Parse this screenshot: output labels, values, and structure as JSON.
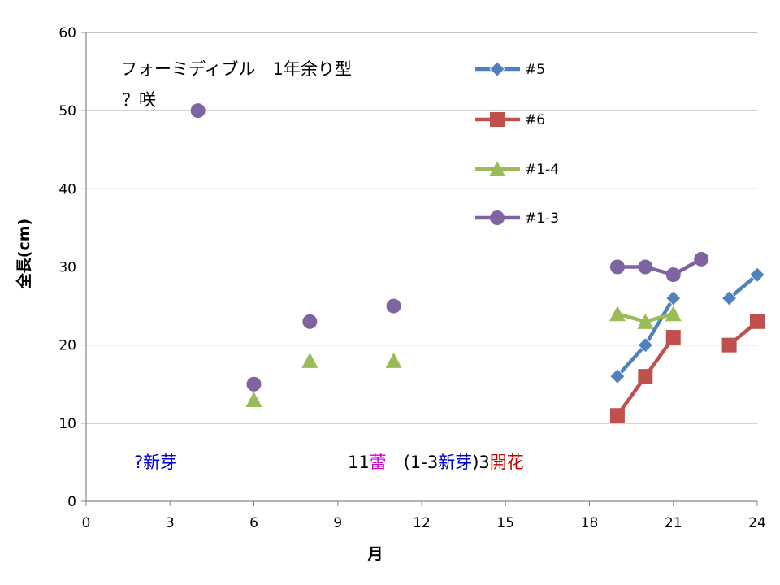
{
  "chart_data": {
    "type": "scatter",
    "title": "",
    "xlabel": "月",
    "ylabel": "全長(cm)",
    "xlim": [
      0,
      24
    ],
    "ylim": [
      0,
      60
    ],
    "xticks": [
      0,
      3,
      6,
      9,
      12,
      15,
      18,
      21,
      24
    ],
    "yticks": [
      0,
      10,
      20,
      30,
      40,
      50,
      60
    ],
    "grid": "horizontal",
    "legend_position": "top-right",
    "series": [
      {
        "name": "#5",
        "color": "#4F81BD",
        "marker": "diamond",
        "segments": [
          [
            [
              19,
              16
            ],
            [
              20,
              20
            ],
            [
              21,
              26
            ]
          ],
          [
            [
              23,
              26
            ],
            [
              24,
              29
            ]
          ]
        ]
      },
      {
        "name": "#6",
        "color": "#C0504D",
        "marker": "square",
        "segments": [
          [
            [
              19,
              11
            ],
            [
              20,
              16
            ],
            [
              21,
              21
            ]
          ],
          [
            [
              23,
              20
            ],
            [
              24,
              23
            ]
          ]
        ]
      },
      {
        "name": "#1-4",
        "color": "#9BBB59",
        "marker": "triangle",
        "segments": [
          [
            [
              6,
              13
            ]
          ],
          [
            [
              8,
              18
            ]
          ],
          [
            [
              11,
              18
            ]
          ],
          [
            [
              19,
              24
            ],
            [
              20,
              23
            ],
            [
              21,
              24
            ]
          ]
        ]
      },
      {
        "name": "#1-3",
        "color": "#8064A2",
        "marker": "circle",
        "segments": [
          [
            [
              4,
              50
            ]
          ],
          [
            [
              6,
              15
            ]
          ],
          [
            [
              8,
              23
            ]
          ],
          [
            [
              11,
              25
            ]
          ],
          [
            [
              19,
              30
            ],
            [
              20,
              30
            ],
            [
              21,
              29
            ],
            [
              22,
              31
            ]
          ]
        ]
      }
    ],
    "annotations": {
      "title_line1": "フォーミディブル　1年余り型",
      "title_line2": "？咲",
      "note_left": "?新芽",
      "note_mid": [
        {
          "text": "11",
          "color": "#000000"
        },
        {
          "text": "蕾",
          "color": "#CC00CC"
        },
        {
          "text": "　(1-3",
          "color": "#000000"
        },
        {
          "text": "新芽",
          "color": "#0000CC"
        },
        {
          "text": ")3",
          "color": "#000000"
        },
        {
          "text": "開花",
          "color": "#CC0000"
        }
      ],
      "note_left_color": "#0000CC"
    }
  }
}
